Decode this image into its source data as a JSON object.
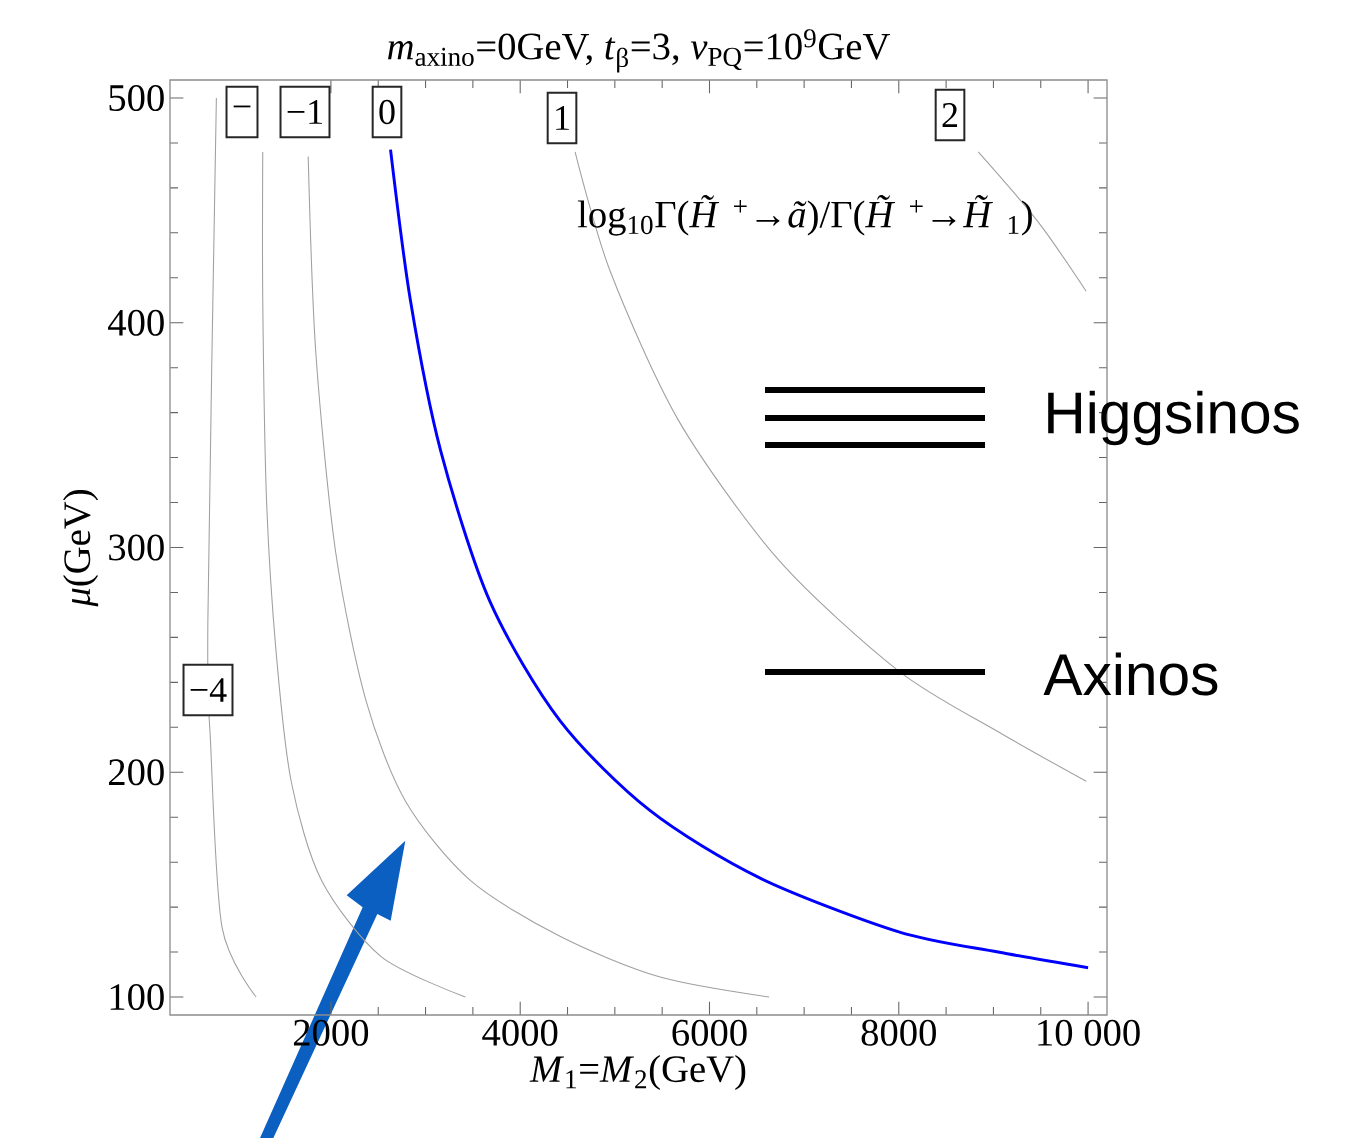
{
  "chart_data": {
    "type": "line",
    "title": "*m*$_{axino}$=0GeV, *t*$_{β}$=3, *v*$_{PQ}$=10$^{9}$GeV",
    "xlabel": "*M*$_{1}$=*M*$_{2}$(GeV)",
    "ylabel": "*μ*(GeV)",
    "xlim": [
      300,
      10200
    ],
    "ylim": [
      92,
      508
    ],
    "xticks": [
      2000,
      4000,
      6000,
      8000,
      {
        "value": 10000,
        "label": "10 000"
      }
    ],
    "yticks": [
      100,
      200,
      300,
      400,
      500
    ],
    "grid": false,
    "series": [
      {
        "color": "#a0a0a0",
        "x": [
          790,
          700,
          730,
          850,
          1210
        ],
        "values": [
          500,
          267,
          212,
          131,
          100
        ]
      },
      {
        "color": "#a0a0a0",
        "x": [
          1280,
          1280,
          1320,
          1420,
          1580,
          1900,
          2530,
          3420
        ],
        "values": [
          476,
          410,
          321,
          254,
          196,
          152,
          118,
          100
        ]
      },
      {
        "color": "#a0a0a0",
        "x": [
          1760,
          1840,
          2050,
          2370,
          2790,
          3470,
          4420,
          5470,
          6630
        ],
        "values": [
          474,
          387,
          298,
          232,
          187,
          152,
          127,
          109,
          100
        ]
      },
      {
        "color": "#0000ff",
        "x": [
          2630,
          2840,
          3160,
          3680,
          4420,
          5370,
          6530,
          8000,
          9050,
          10000
        ],
        "values": [
          477,
          410,
          343,
          276,
          223,
          183,
          153,
          129,
          120,
          113
        ]
      },
      {
        "color": "#a0a0a0",
        "x": [
          4580,
          4950,
          5680,
          6740,
          8000,
          9050,
          9980
        ],
        "values": [
          476,
          423,
          356,
          294,
          245,
          218,
          196
        ]
      },
      {
        "color": "#a0a0a0",
        "x": [
          8840,
          9470,
          9980
        ],
        "values": [
          476,
          445,
          414
        ]
      }
    ],
    "annotations": [
      "−4",
      "−",
      "−1",
      "0",
      "1",
      "2",
      "log$_{10}$Γ(*H̃*$^{+}$→*ã*)/Γ(*H̃*$^{+}$→*H̃*$_{1}$)",
      "Higgsinos",
      "Axinos"
    ]
  }
}
